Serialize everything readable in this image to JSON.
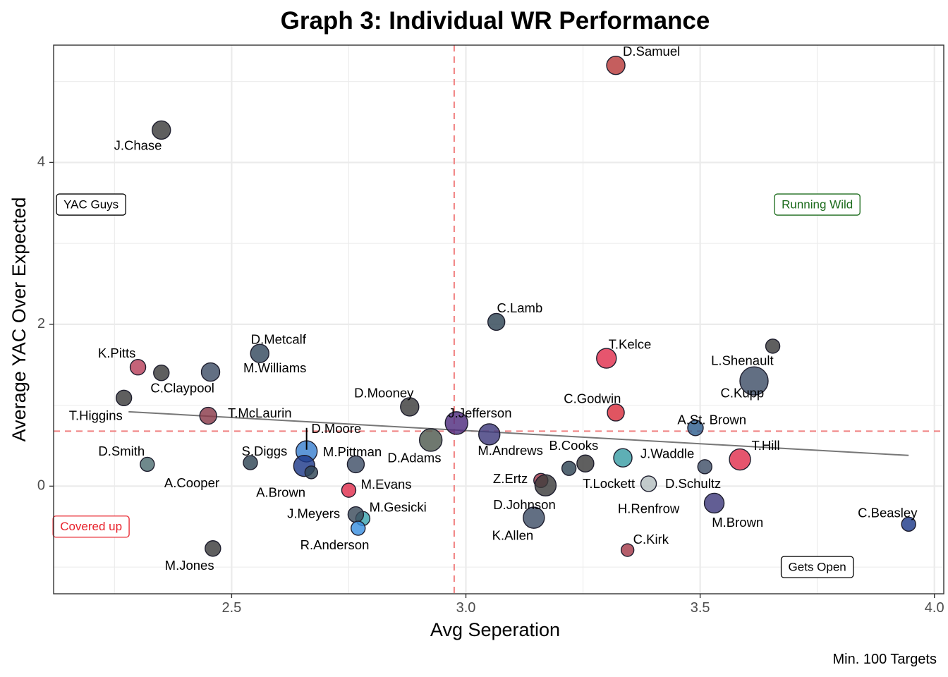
{
  "chart_data": {
    "type": "scatter",
    "title": "Graph 3: Individual WR Performance",
    "xlabel": "Avg Seperation",
    "ylabel": "Average YAC Over Expected",
    "caption": "Min. 100 Targets",
    "xlim": [
      2.12,
      4.02
    ],
    "ylim": [
      -1.33,
      5.45
    ],
    "x_ticks": [
      2.5,
      3.0,
      3.5,
      4.0
    ],
    "x_tick_labels": [
      "2.5",
      "3.0",
      "3.5",
      "4.0"
    ],
    "y_ticks": [
      0,
      2,
      4
    ],
    "y_tick_labels": [
      "0",
      "2",
      "4"
    ],
    "grid": true,
    "reference_lines": {
      "vertical_x": 2.975,
      "horizontal_y": 0.68,
      "color": "#f08080"
    },
    "trend_line": {
      "x": [
        2.28,
        3.945
      ],
      "y": [
        0.92,
        0.38
      ],
      "color": "#777777"
    },
    "quadrant_notes": [
      {
        "text": "YAC Guys",
        "x": 2.2,
        "y": 3.48,
        "color": "#000000"
      },
      {
        "text": "Running Wild",
        "x": 3.75,
        "y": 3.48,
        "color": "#1a6a1a"
      },
      {
        "text": "Covered up",
        "x": 2.2,
        "y": -0.5,
        "color": "#e8202a"
      },
      {
        "text": "Gets Open",
        "x": 3.75,
        "y": -1.0,
        "color": "#000000"
      }
    ],
    "points": [
      {
        "name": "D.Samuel",
        "x": 3.32,
        "y": 5.2,
        "size": 13,
        "color": "#b83a3a",
        "lx": 3.335,
        "ly": 5.36,
        "anchor": "start"
      },
      {
        "name": "J.Chase",
        "x": 2.35,
        "y": 4.4,
        "size": 13,
        "color": "#3c3c3c",
        "lx": 2.3,
        "ly": 4.2,
        "anchor": "middle"
      },
      {
        "name": "C.Lamb",
        "x": 3.065,
        "y": 2.03,
        "size": 12,
        "color": "#2f4556",
        "lx": 3.115,
        "ly": 2.19,
        "anchor": "middle"
      },
      {
        "name": "T.Kelce",
        "x": 3.3,
        "y": 1.58,
        "size": 14,
        "color": "#e0304e",
        "lx": 3.35,
        "ly": 1.74,
        "anchor": "middle"
      },
      {
        "name": "D.Metcalf",
        "x": 2.56,
        "y": 1.64,
        "size": 13,
        "color": "#34495e",
        "lx": 2.6,
        "ly": 1.8,
        "anchor": "middle"
      },
      {
        "name": "K.Pitts",
        "x": 2.3,
        "y": 1.47,
        "size": 11,
        "color": "#b8415c",
        "lx": 2.255,
        "ly": 1.63,
        "anchor": "middle"
      },
      {
        "name": "M.Williams",
        "x": 2.455,
        "y": 1.41,
        "size": 13,
        "color": "#3f4f68",
        "lx": 2.525,
        "ly": 1.45,
        "anchor": "start"
      },
      {
        "name": "",
        "x": 2.35,
        "y": 1.4,
        "size": 11,
        "color": "#3c3c3c"
      },
      {
        "name": "",
        "x": 3.655,
        "y": 1.73,
        "size": 10,
        "color": "#3c3c3c"
      },
      {
        "name": "L.Shenault",
        "x": 3.615,
        "y": 1.3,
        "size": 20,
        "color": "#3f4f68",
        "lx": 3.59,
        "ly": 1.54,
        "anchor": "middle"
      },
      {
        "name": "C.Kupp",
        "x": 3.615,
        "y": 1.3,
        "size": 0,
        "color": "#3f4f68",
        "lx": 3.59,
        "ly": 1.14,
        "anchor": "middle"
      },
      {
        "name": "C.Claypool",
        "x": 2.27,
        "y": 1.09,
        "size": 11,
        "color": "#3c3c3c",
        "lx": 2.395,
        "ly": 1.2,
        "anchor": "middle"
      },
      {
        "name": "T.Higgins",
        "x": 2.27,
        "y": 1.09,
        "size": 0,
        "color": "#3c3c3c",
        "lx": 2.21,
        "ly": 0.86,
        "anchor": "middle"
      },
      {
        "name": "D.Mooney",
        "x": 2.88,
        "y": 0.98,
        "size": 13,
        "color": "#3c3c3c",
        "lx": 2.825,
        "ly": 1.14,
        "anchor": "middle"
      },
      {
        "name": "C.Godwin",
        "x": 3.32,
        "y": 0.91,
        "size": 12,
        "color": "#d9303e",
        "lx": 3.27,
        "ly": 1.07,
        "anchor": "middle"
      },
      {
        "name": "T.McLaurin",
        "x": 2.45,
        "y": 0.87,
        "size": 12,
        "color": "#8a3a4a",
        "lx": 2.56,
        "ly": 0.89,
        "anchor": "middle"
      },
      {
        "name": "J.Jefferson",
        "x": 2.98,
        "y": 0.78,
        "size": 16,
        "color": "#4f2d7f",
        "lx": 3.03,
        "ly": 0.89,
        "anchor": "middle"
      },
      {
        "name": "A.St. Brown",
        "x": 3.49,
        "y": 0.72,
        "size": 11,
        "color": "#2f5f8f",
        "lx": 3.525,
        "ly": 0.81,
        "anchor": "middle"
      },
      {
        "name": "D.Moore",
        "x": 2.66,
        "y": 0.58,
        "size": 0,
        "color": "#1f6fb6",
        "lx": 2.67,
        "ly": 0.7,
        "anchor": "start"
      },
      {
        "name": "M.Andrews",
        "x": 3.05,
        "y": 0.64,
        "size": 15,
        "color": "#3f3a7c",
        "lx": 3.095,
        "ly": 0.43,
        "anchor": "middle"
      },
      {
        "name": "D.Adams",
        "x": 2.925,
        "y": 0.57,
        "size": 16,
        "color": "#4f5a4f",
        "lx": 2.89,
        "ly": 0.34,
        "anchor": "middle"
      },
      {
        "name": "M.Pittman",
        "x": 2.66,
        "y": 0.43,
        "size": 15,
        "color": "#3a80d0",
        "lx": 2.695,
        "ly": 0.41,
        "anchor": "start"
      },
      {
        "name": "S.Diggs",
        "x": 2.54,
        "y": 0.29,
        "size": 10,
        "color": "#2f4556",
        "lx": 2.57,
        "ly": 0.42,
        "anchor": "middle"
      },
      {
        "name": "D.Smith",
        "x": 2.32,
        "y": 0.27,
        "size": 10,
        "color": "#4f6f73",
        "lx": 2.265,
        "ly": 0.42,
        "anchor": "middle"
      },
      {
        "name": "J.Waddle",
        "x": 3.335,
        "y": 0.35,
        "size": 13,
        "color": "#3a9ea5",
        "lx": 3.43,
        "ly": 0.39,
        "anchor": "middle"
      },
      {
        "name": "T.Hill",
        "x": 3.585,
        "y": 0.33,
        "size": 15,
        "color": "#e0304e",
        "lx": 3.64,
        "ly": 0.49,
        "anchor": "middle"
      },
      {
        "name": "B.Cooks",
        "x": 3.255,
        "y": 0.28,
        "size": 12,
        "color": "#3c3c3c",
        "lx": 3.23,
        "ly": 0.49,
        "anchor": "middle"
      },
      {
        "name": "",
        "x": 3.22,
        "y": 0.22,
        "size": 10,
        "color": "#2f4556"
      },
      {
        "name": "",
        "x": 3.51,
        "y": 0.24,
        "size": 10,
        "color": "#3f4f68"
      },
      {
        "name": "A.Brown",
        "x": 2.655,
        "y": 0.25,
        "size": 15,
        "color": "#1f3b8a",
        "lx": 2.605,
        "ly": -0.09,
        "anchor": "middle"
      },
      {
        "name": "",
        "x": 2.67,
        "y": 0.17,
        "size": 9,
        "color": "#2f4556"
      },
      {
        "name": "",
        "x": 2.765,
        "y": 0.27,
        "size": 12,
        "color": "#3f4f68"
      },
      {
        "name": "A.Cooper",
        "x": 2.53,
        "y": 0.29,
        "size": 0,
        "color": "#2f4556",
        "lx": 2.415,
        "ly": 0.03,
        "anchor": "middle"
      },
      {
        "name": "M.Evans",
        "x": 2.75,
        "y": -0.05,
        "size": 10,
        "color": "#e0304e",
        "lx": 2.83,
        "ly": 0.01,
        "anchor": "middle"
      },
      {
        "name": "Z.Ertz",
        "x": 3.16,
        "y": 0.07,
        "size": 10,
        "color": "#a53a4a",
        "lx": 3.095,
        "ly": 0.08,
        "anchor": "middle"
      },
      {
        "name": "D.Johnson",
        "x": 3.17,
        "y": 0.01,
        "size": 15,
        "color": "#3c3c3c",
        "lx": 3.125,
        "ly": -0.24,
        "anchor": "middle"
      },
      {
        "name": "T.Lockett",
        "x": 3.39,
        "y": 0.03,
        "size": 11,
        "color": "#b4bec0",
        "lx": 3.305,
        "ly": 0.02,
        "anchor": "middle"
      },
      {
        "name": "D.Schultz",
        "x": 3.39,
        "y": 0.03,
        "size": 0,
        "color": "#b4bec0",
        "lx": 3.485,
        "ly": 0.02,
        "anchor": "middle"
      },
      {
        "name": "H.Renfrow",
        "x": 3.37,
        "y": -0.18,
        "size": 0,
        "color": "#b4bec0",
        "lx": 3.39,
        "ly": -0.29,
        "anchor": "middle"
      },
      {
        "name": "M.Brown",
        "x": 3.53,
        "y": -0.21,
        "size": 14,
        "color": "#3f3a7c",
        "lx": 3.58,
        "ly": -0.46,
        "anchor": "middle"
      },
      {
        "name": "M.Gesicki",
        "x": 2.78,
        "y": -0.4,
        "size": 10,
        "color": "#3aa5b0",
        "lx": 2.855,
        "ly": -0.27,
        "anchor": "middle"
      },
      {
        "name": "J.Meyers",
        "x": 2.765,
        "y": -0.35,
        "size": 11,
        "color": "#3c4c5c",
        "lx": 2.675,
        "ly": -0.35,
        "anchor": "middle"
      },
      {
        "name": "R.Anderson",
        "x": 2.77,
        "y": -0.52,
        "size": 10,
        "color": "#3a90e0",
        "lx": 2.72,
        "ly": -0.74,
        "anchor": "middle"
      },
      {
        "name": "K.Allen",
        "x": 3.145,
        "y": -0.39,
        "size": 15,
        "color": "#3f4f68",
        "lx": 3.1,
        "ly": -0.62,
        "anchor": "middle"
      },
      {
        "name": "C.Beasley",
        "x": 3.945,
        "y": -0.47,
        "size": 10,
        "color": "#1f3b8a",
        "lx": 3.9,
        "ly": -0.34,
        "anchor": "middle"
      },
      {
        "name": "C.Kirk",
        "x": 3.345,
        "y": -0.79,
        "size": 9,
        "color": "#a53a4a",
        "lx": 3.395,
        "ly": -0.67,
        "anchor": "middle"
      },
      {
        "name": "M.Jones",
        "x": 2.46,
        "y": -0.77,
        "size": 11,
        "color": "#3c3c3c",
        "lx": 2.41,
        "ly": -0.99,
        "anchor": "middle"
      }
    ]
  }
}
